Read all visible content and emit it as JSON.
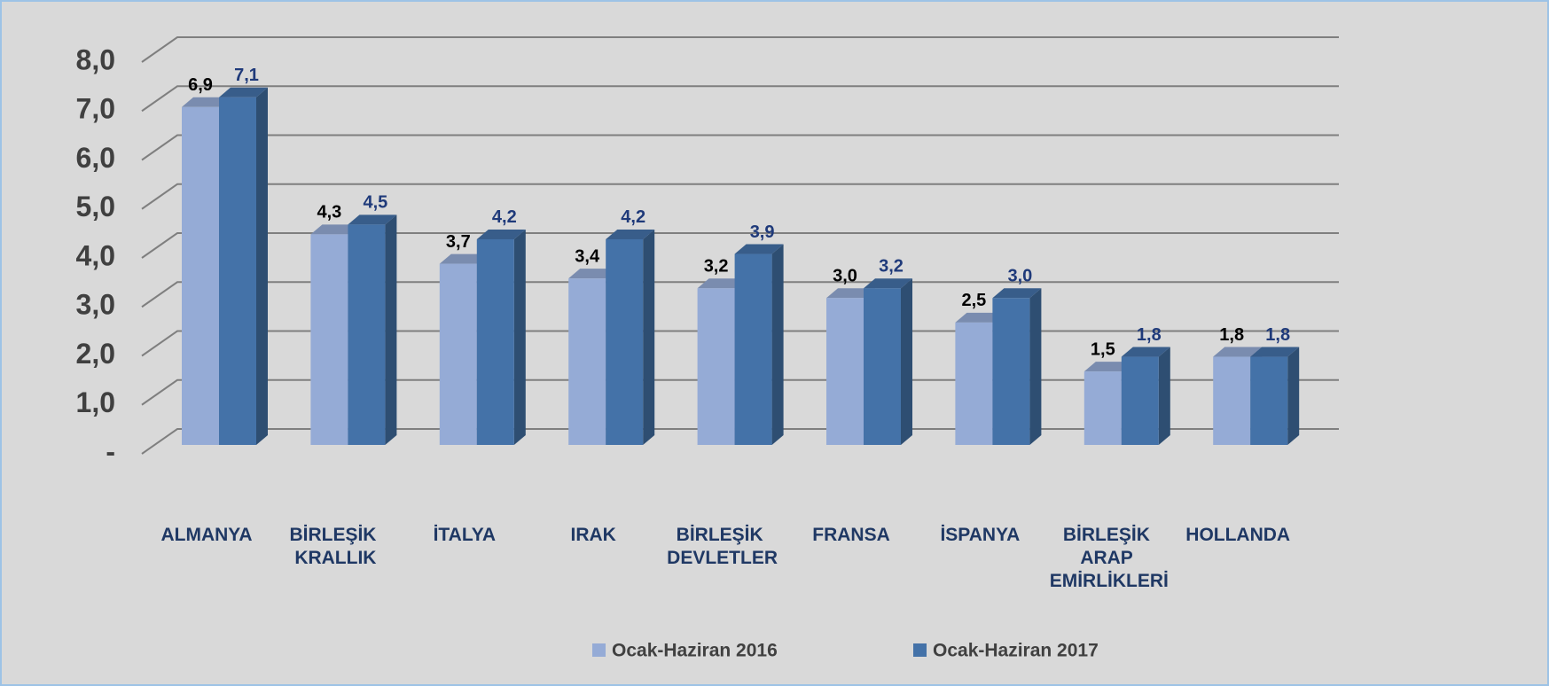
{
  "chart_data": {
    "type": "bar3d",
    "categories": [
      "ALMANYA",
      "BİRLEŞİK KRALLIK",
      "İTALYA",
      "IRAK",
      "BİRLEŞİK DEVLETLER",
      "FRANSA",
      "İSPANYA",
      "BİRLEŞİK ARAP EMİRLİKLERİ",
      "HOLLANDA"
    ],
    "series": [
      {
        "name": "Ocak-Haziran 2016",
        "color": "#95abd6",
        "label_color": "#000000",
        "values": [
          6.9,
          4.3,
          3.7,
          3.4,
          3.2,
          3.0,
          2.5,
          1.5,
          1.8
        ],
        "value_labels": [
          "6,9",
          "4,3",
          "3,7",
          "3,4",
          "3,2",
          "3,0",
          "2,5",
          "1,5",
          "1,8"
        ]
      },
      {
        "name": "Ocak-Haziran 2017",
        "color": "#4472a8",
        "label_color": "#1f3a7a",
        "values": [
          7.1,
          4.5,
          4.2,
          4.2,
          3.9,
          3.2,
          3.0,
          1.8,
          1.8
        ],
        "value_labels": [
          "7,1",
          "4,5",
          "4,2",
          "4,2",
          "3,9",
          "3,2",
          "3,0",
          "1,8",
          "1,8"
        ]
      }
    ],
    "ylim": [
      0,
      8
    ],
    "yticks": [
      {
        "value": 0,
        "label": "-"
      },
      {
        "value": 1,
        "label": "1,0"
      },
      {
        "value": 2,
        "label": "2,0"
      },
      {
        "value": 3,
        "label": "3,0"
      },
      {
        "value": 4,
        "label": "4,0"
      },
      {
        "value": 5,
        "label": "5,0"
      },
      {
        "value": 6,
        "label": "6,0"
      },
      {
        "value": 7,
        "label": "7,0"
      },
      {
        "value": 8,
        "label": "8,0"
      }
    ],
    "grid": true,
    "legend": "bottom"
  }
}
